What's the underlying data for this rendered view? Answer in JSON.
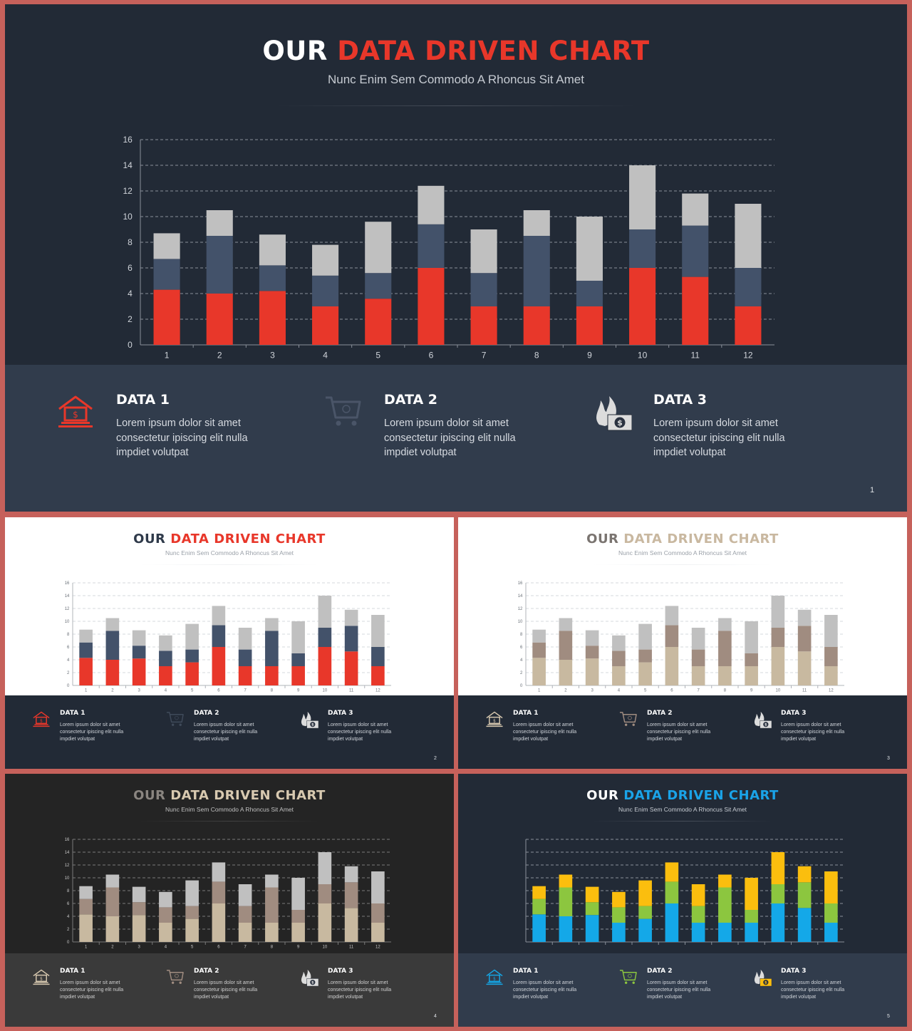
{
  "chart_data": {
    "type": "bar",
    "stacked": true,
    "categories": [
      "1",
      "2",
      "3",
      "4",
      "5",
      "6",
      "7",
      "8",
      "9",
      "10",
      "11",
      "12"
    ],
    "series": [
      {
        "values": [
          4.3,
          4.0,
          4.2,
          3.0,
          3.6,
          6.0,
          3.0,
          3.0,
          3.0,
          6.0,
          5.3,
          3.0
        ]
      },
      {
        "values": [
          2.4,
          4.5,
          2.0,
          2.4,
          2.0,
          3.4,
          2.6,
          5.5,
          2.0,
          3.0,
          4.0,
          3.0
        ]
      },
      {
        "values": [
          2.0,
          2.0,
          2.4,
          2.4,
          4.0,
          3.0,
          3.4,
          2.0,
          5.0,
          5.0,
          2.5,
          5.0
        ]
      }
    ],
    "ylim": [
      0,
      16
    ],
    "yticks": [
      0,
      2,
      4,
      6,
      8,
      10,
      12,
      14,
      16
    ],
    "grid": "dashed horizontal"
  },
  "slides": [
    {
      "title_a": "OUR ",
      "title_b": "DATA DRIVEN CHART",
      "subtitle": "Nunc Enim Sem Commodo A Rhoncus Sit Amet",
      "page": "1",
      "show_ticks": true,
      "colors": {
        "top_bg": "#222a36",
        "bottom_bg": "#313c4c",
        "title_a": "#ffffff",
        "title_b": "#e8372a",
        "subtitle": "#c6cbd2",
        "axis_text": "#d0d4da",
        "grid": "#8a909a",
        "axis": "#8a909a",
        "item_head": "#ffffff",
        "item_body": "#d6dae0",
        "series": [
          "#e8372a",
          "#43526a",
          "#c0c0c0"
        ],
        "icons": [
          "#e8372a",
          "#4a5568",
          "#dcdcdc"
        ],
        "page": "#dfe2e6"
      },
      "items": [
        {
          "heading": "DATA 1",
          "body": [
            "Lorem ipsum dolor sit amet",
            "consectetur ipiscing elit nulla",
            "impdiet volutpat"
          ],
          "icon": "bank-icon"
        },
        {
          "heading": "DATA 2",
          "body": [
            "Lorem ipsum dolor sit amet",
            "consectetur ipiscing elit nulla",
            "impdiet volutpat"
          ],
          "icon": "cart-icon"
        },
        {
          "heading": "DATA 3",
          "body": [
            "Lorem ipsum dolor sit amet",
            "consectetur ipiscing elit nulla",
            "impdiet volutpat"
          ],
          "icon": "burning-money-icon"
        }
      ]
    },
    {
      "title_a": "OUR ",
      "title_b": "DATA DRIVEN CHART",
      "subtitle": "Nunc Enim Sem Commodo A Rhoncus Sit Amet",
      "page": "2",
      "show_ticks": true,
      "colors": {
        "top_bg": "#ffffff",
        "bottom_bg": "#222a36",
        "title_a": "#2f3a4a",
        "title_b": "#e8372a",
        "subtitle": "#9aa0a8",
        "axis_text": "#6a7078",
        "grid": "#d4d8dc",
        "axis": "#b0b4ba",
        "item_head": "#ffffff",
        "item_body": "#d0d4da",
        "series": [
          "#e8372a",
          "#43526a",
          "#c0c0c0"
        ],
        "icons": [
          "#e8372a",
          "#3f4a5a",
          "#dcdcdc"
        ],
        "page": "#dfe2e6"
      },
      "items": [
        {
          "heading": "DATA 1",
          "body": [
            "Lorem ipsum dolor sit amet",
            "consectetur ipiscing elit nulla",
            "impdiet volutpat"
          ],
          "icon": "bank-icon"
        },
        {
          "heading": "DATA 2",
          "body": [
            "Lorem ipsum dolor sit amet",
            "consectetur ipiscing elit nulla",
            "impdiet volutpat"
          ],
          "icon": "cart-icon"
        },
        {
          "heading": "DATA 3",
          "body": [
            "Lorem ipsum dolor sit amet",
            "consectetur ipiscing elit nulla",
            "impdiet volutpat"
          ],
          "icon": "burning-money-icon"
        }
      ]
    },
    {
      "title_a": "OUR ",
      "title_b": "DATA DRIVEN CHART",
      "subtitle": "Nunc Enim Sem Commodo A Rhoncus Sit Amet",
      "page": "3",
      "show_ticks": true,
      "colors": {
        "top_bg": "#ffffff",
        "bottom_bg": "#222a36",
        "title_a": "#7a7470",
        "title_b": "#c9b8a0",
        "subtitle": "#9aa0a8",
        "axis_text": "#6a7078",
        "grid": "#d4d8dc",
        "axis": "#b0b4ba",
        "item_head": "#ffffff",
        "item_body": "#d0d4da",
        "series": [
          "#c8b9a0",
          "#a08c80",
          "#c0c0c0"
        ],
        "icons": [
          "#d8c9b0",
          "#a08c80",
          "#dcdcdc"
        ],
        "page": "#dfe2e6"
      },
      "items": [
        {
          "heading": "DATA 1",
          "body": [
            "Lorem ipsum dolor sit amet",
            "consectetur ipiscing elit nulla",
            "impdiet volutpat"
          ],
          "icon": "bank-icon"
        },
        {
          "heading": "DATA 2",
          "body": [
            "Lorem ipsum dolor sit amet",
            "consectetur ipiscing elit nulla",
            "impdiet volutpat"
          ],
          "icon": "cart-icon"
        },
        {
          "heading": "DATA 3",
          "body": [
            "Lorem ipsum dolor sit amet",
            "consectetur ipiscing elit nulla",
            "impdiet volutpat"
          ],
          "icon": "burning-money-icon"
        }
      ]
    },
    {
      "title_a": "OUR ",
      "title_b": "DATA DRIVEN CHART",
      "subtitle": "Nunc Enim Sem Commodo A Rhoncus Sit Amet",
      "page": "4",
      "show_ticks": true,
      "colors": {
        "top_bg": "#242424",
        "bottom_bg": "#3a3a3a",
        "title_a": "#8a8580",
        "title_b": "#d8c9b0",
        "subtitle": "#c0c0c0",
        "axis_text": "#c8c8c8",
        "grid": "#7a7a7a",
        "axis": "#7a7a7a",
        "item_head": "#ffffff",
        "item_body": "#d0d0d0",
        "series": [
          "#c8b9a0",
          "#a08c80",
          "#c0c0c0"
        ],
        "icons": [
          "#d8c9b0",
          "#a08c80",
          "#dcdcdc"
        ],
        "page": "#dfe2e6"
      },
      "items": [
        {
          "heading": "DATA 1",
          "body": [
            "Lorem ipsum dolor sit amet",
            "consectetur ipiscing elit nulla",
            "impdiet volutpat"
          ],
          "icon": "bank-icon"
        },
        {
          "heading": "DATA 2",
          "body": [
            "Lorem ipsum dolor sit amet",
            "consectetur ipiscing elit nulla",
            "impdiet volutpat"
          ],
          "icon": "cart-icon"
        },
        {
          "heading": "DATA 3",
          "body": [
            "Lorem ipsum dolor sit amet",
            "consectetur ipiscing elit nulla",
            "impdiet volutpat"
          ],
          "icon": "burning-money-icon"
        }
      ]
    },
    {
      "title_a": "OUR ",
      "title_b": "DATA DRIVEN CHART",
      "subtitle": "Nunc Enim Sem Commodo A Rhoncus Sit Amet",
      "page": "5",
      "show_ticks": false,
      "colors": {
        "top_bg": "#222a36",
        "bottom_bg": "#313c4c",
        "title_a": "#ffffff",
        "title_b": "#1aa3e8",
        "subtitle": "#c6cbd2",
        "axis_text": "#d0d4da",
        "grid": "#8a909a",
        "axis": "#8a909a",
        "item_head": "#ffffff",
        "item_body": "#d0d4da",
        "series": [
          "#14a8e8",
          "#8cc63f",
          "#fbbe0e"
        ],
        "icons": [
          "#14a8e8",
          "#8cc63f",
          "#fbbe0e"
        ],
        "page": "#dfe2e6"
      },
      "items": [
        {
          "heading": "DATA 1",
          "body": [
            "Lorem ipsum dolor sit amet",
            "consectetur ipiscing elit nulla",
            "impdiet volutpat"
          ],
          "icon": "bank-icon"
        },
        {
          "heading": "DATA 2",
          "body": [
            "Lorem ipsum dolor sit amet",
            "consectetur ipiscing elit nulla",
            "impdiet volutpat"
          ],
          "icon": "cart-icon"
        },
        {
          "heading": "DATA 3",
          "body": [
            "Lorem ipsum dolor sit amet",
            "consectetur ipiscing elit nulla",
            "impdiet volutpat"
          ],
          "icon": "burning-money-icon"
        }
      ]
    }
  ]
}
